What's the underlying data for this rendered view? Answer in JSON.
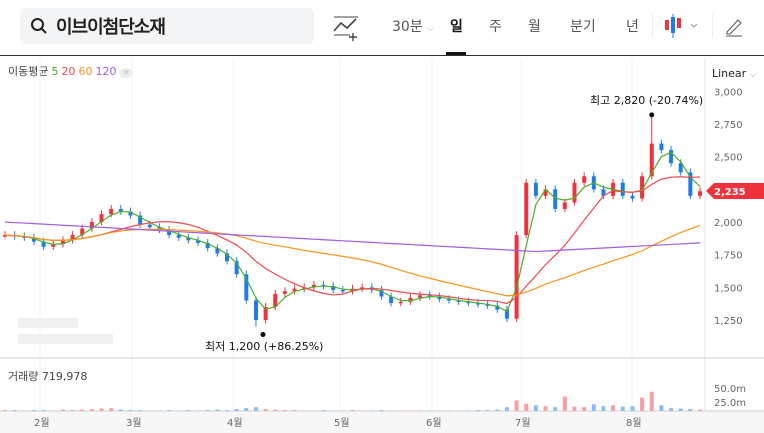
{
  "header": {
    "title": "이브이첨단소재",
    "interval": "30분",
    "periods": [
      "일",
      "주",
      "월",
      "분기",
      "년"
    ],
    "active_period": "일"
  },
  "indicators": {
    "label": "이동평균",
    "periods": [
      "5",
      "20",
      "60",
      "120"
    ],
    "colors": [
      "#4caf25",
      "#f0484e",
      "#f7941d",
      "#a25ddc"
    ]
  },
  "scale": "Linear",
  "volume_label": "거래량 719,978",
  "colors": {
    "up": "#f0323c",
    "down": "#1f7ce6"
  },
  "annotations": {
    "high": "최고 2,820 (-20.74%)",
    "low": "최저 1,200 (+86.25%)",
    "current": "2,235"
  },
  "chart_data": {
    "type": "candlestick",
    "x_ticks": [
      "2월",
      "3월",
      "4월",
      "5월",
      "6월",
      "7월",
      "8월"
    ],
    "y_ticks": [
      "3,000",
      "2,750",
      "2,500",
      "2,250",
      "2,000",
      "1,750",
      "1,500",
      "1,250"
    ],
    "ylim": [
      1100,
      3000
    ],
    "volume_ticks": [
      "50.0m",
      "25.0m"
    ],
    "closes": [
      1900,
      1890,
      1880,
      1850,
      1810,
      1830,
      1860,
      1900,
      1950,
      2000,
      2060,
      2100,
      2080,
      2050,
      1980,
      1960,
      1940,
      1900,
      1880,
      1860,
      1840,
      1800,
      1760,
      1700,
      1600,
      1400,
      1250,
      1350,
      1450,
      1470,
      1490,
      1500,
      1520,
      1510,
      1480,
      1470,
      1490,
      1500,
      1480,
      1430,
      1380,
      1390,
      1420,
      1440,
      1430,
      1410,
      1400,
      1390,
      1380,
      1370,
      1360,
      1330,
      1260,
      1900,
      2300,
      2200,
      2250,
      2100,
      2150,
      2300,
      2350,
      2250,
      2200,
      2300,
      2200,
      2180,
      2350,
      2600,
      2550,
      2450,
      2380,
      2200,
      2235
    ],
    "volumes_m": [
      2,
      2,
      1,
      2,
      2,
      1,
      3,
      2,
      3,
      4,
      5,
      6,
      3,
      2,
      2,
      1,
      1,
      2,
      1,
      2,
      1,
      2,
      3,
      2,
      4,
      6,
      8,
      4,
      3,
      2,
      2,
      1,
      1,
      2,
      1,
      1,
      2,
      1,
      1,
      2,
      1,
      1,
      1,
      1,
      1,
      1,
      1,
      1,
      1,
      2,
      2,
      3,
      8,
      22,
      15,
      12,
      10,
      8,
      30,
      9,
      8,
      14,
      10,
      12,
      9,
      10,
      28,
      40,
      12,
      6,
      5,
      4,
      3
    ]
  }
}
